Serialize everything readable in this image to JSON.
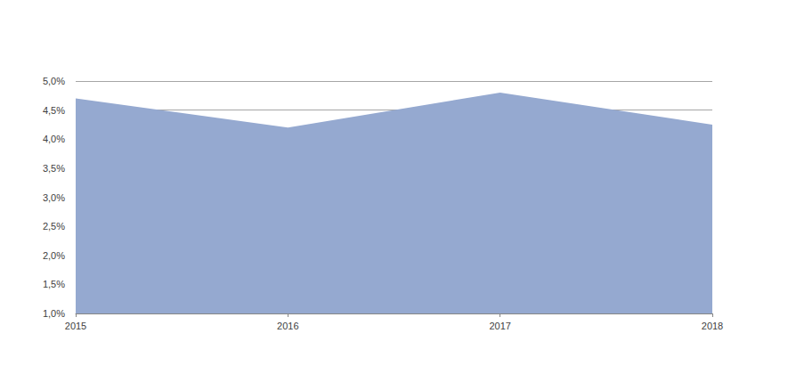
{
  "chart_data": {
    "type": "area",
    "categories": [
      "2015",
      "2016",
      "2017",
      "2018"
    ],
    "values": [
      4.7,
      4.2,
      4.8,
      4.25
    ],
    "color": "#95a9d0",
    "ylim": [
      1.0,
      5.0
    ],
    "yticks": [
      {
        "value": 1.0,
        "label": "1,0%"
      },
      {
        "value": 1.5,
        "label": "1,5%"
      },
      {
        "value": 2.0,
        "label": "2,0%"
      },
      {
        "value": 2.5,
        "label": "2,5%"
      },
      {
        "value": 3.0,
        "label": "3,0%"
      },
      {
        "value": 3.5,
        "label": "3,5%"
      },
      {
        "value": 4.0,
        "label": "4,0%"
      },
      {
        "value": 4.5,
        "label": "4,5%"
      },
      {
        "value": 5.0,
        "label": "5,0%"
      }
    ],
    "grid": true
  }
}
